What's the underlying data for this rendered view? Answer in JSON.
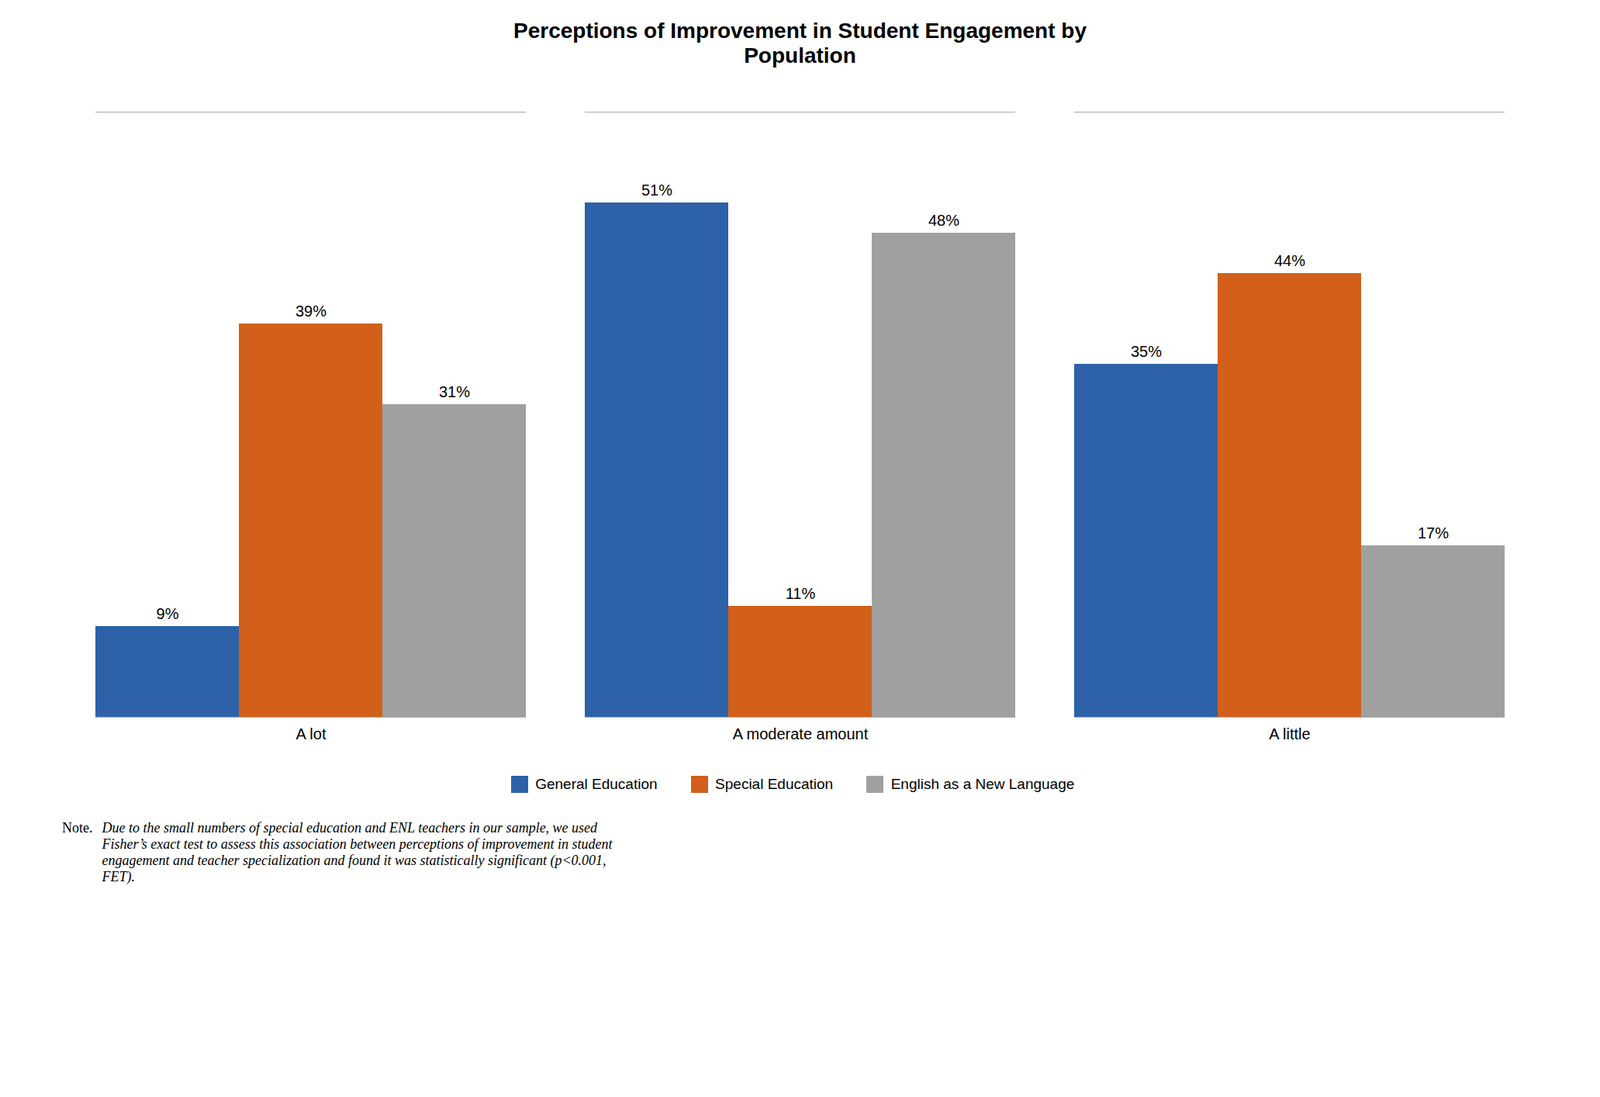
{
  "chart_data": {
    "type": "bar",
    "title": "Perceptions of Improvement in Student Engagement by\nPopulation",
    "categories": [
      "A lot",
      "A moderate amount",
      "A little"
    ],
    "series": [
      {
        "name": "General Education",
        "color": "#2E62A8",
        "values": [
          9,
          51,
          35
        ],
        "value_labels": [
          "9%",
          "51%",
          "35%"
        ]
      },
      {
        "name": "Special Education",
        "color": "#D2601A",
        "values": [
          39,
          11,
          44
        ],
        "value_labels": [
          "39%",
          "11%",
          "44%"
        ]
      },
      {
        "name": "English as a New Language",
        "color": "#A0A0A0",
        "values": [
          31,
          48,
          17
        ],
        "value_labels": [
          "31%",
          "48%",
          "17%"
        ]
      }
    ],
    "ylim": [
      0,
      60
    ],
    "yticks": [],
    "grid": false,
    "tick_labels": "x",
    "data_labels": true,
    "annotations": [
      "Note.",
      "Due to the small numbers of special education and ENL teachers in our sample, we used\nFisher’s exact test to assess this association between perceptions of improvement in student\nengagement and teacher specialization and found it was statistically significant (p<0.001,\nFET)."
    ]
  }
}
